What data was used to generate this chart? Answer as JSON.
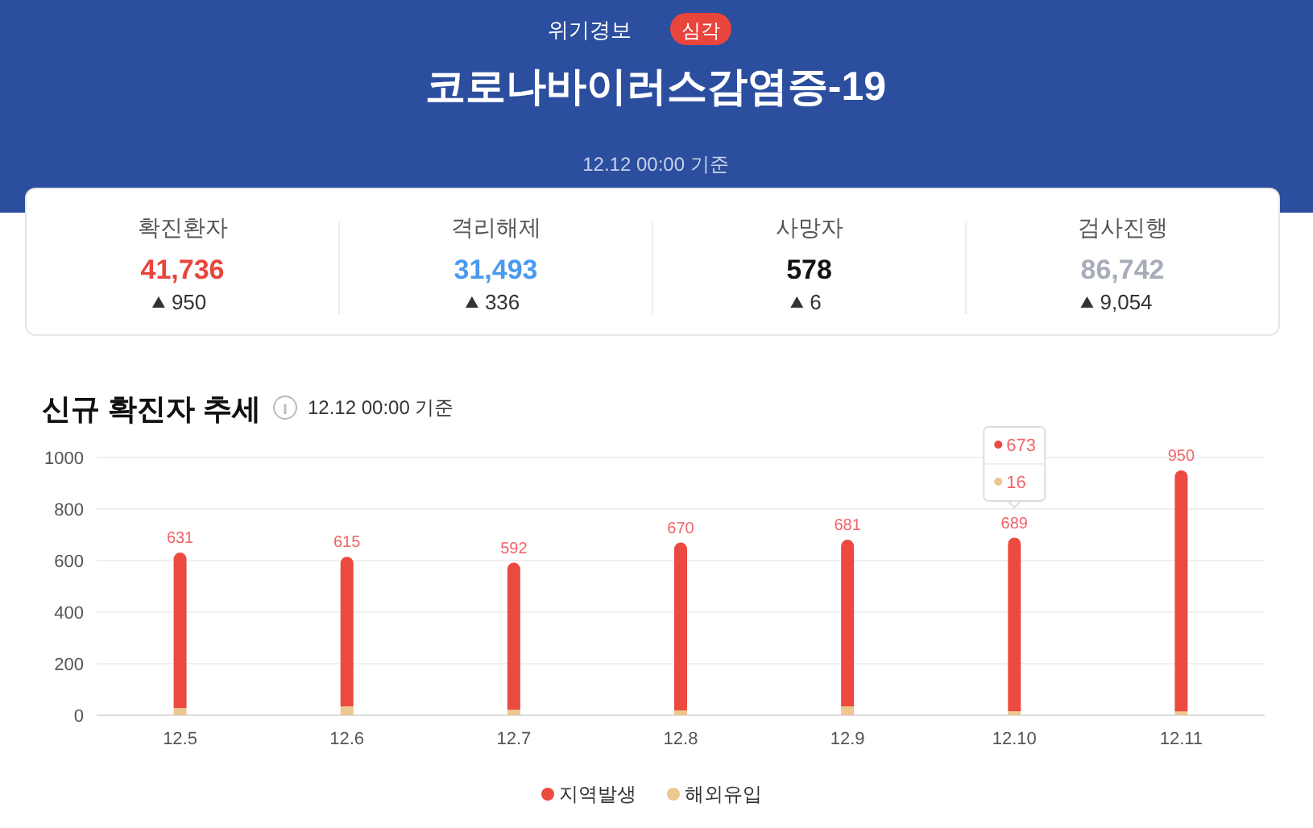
{
  "chart_data": [
    {
      "type": "other",
      "title": "코로나바이러스감염증-19",
      "subtitle": "12.12 00:00 기준",
      "annotations": [
        "위기경보",
        "심각"
      ]
    },
    {
      "type": "other",
      "annotations": [
        "확진환자",
        "41,736",
        "950",
        "격리해제",
        "31,493",
        "336",
        "사망자",
        "578",
        "6",
        "검사진행",
        "86,742",
        "9,054"
      ],
      "colors": [
        "#e8453c",
        "#4a9af0",
        "#111111",
        "#a7adb8"
      ]
    },
    {
      "type": "bar",
      "title": "신규 확진자 추세",
      "subtitle": "12.12 00:00 기준",
      "stacked": true,
      "categories": [
        "12.5",
        "12.6",
        "12.7",
        "12.8",
        "12.9",
        "12.10",
        "12.11"
      ],
      "series": [
        {
          "name": "해외유입",
          "color": "#ecc88e",
          "values": [
            27,
            34,
            21,
            19,
            34,
            16,
            15
          ]
        },
        {
          "name": "지역발생",
          "color": "#ec4a40",
          "values": [
            604,
            581,
            571,
            651,
            647,
            673,
            935
          ]
        }
      ],
      "totals": [
        "631",
        "615",
        "592",
        "670",
        "681",
        "689",
        "950"
      ],
      "annotations": [
        "673",
        "16"
      ],
      "ylim": [
        0,
        1000
      ],
      "yticks": [
        0,
        200,
        400,
        600,
        800,
        1000
      ],
      "grid": "y",
      "legend": "bottom"
    }
  ]
}
